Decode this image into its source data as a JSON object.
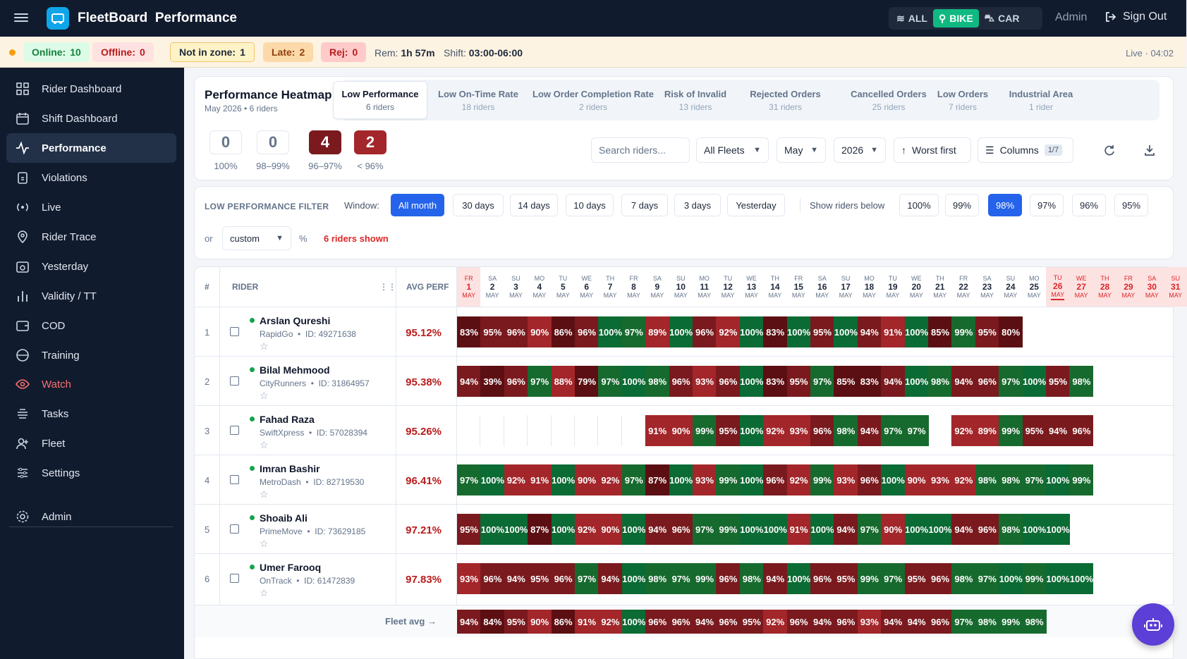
{
  "app": {
    "brand": "FleetBoard",
    "page": "Performance"
  },
  "vehicle_filter": [
    {
      "label": "ALL",
      "active": false
    },
    {
      "label": "BIKE",
      "active": true
    },
    {
      "label": "CAR",
      "active": false
    }
  ],
  "header": {
    "admin": "Admin",
    "signout": "Sign Out"
  },
  "status": {
    "online_label": "Online:",
    "online": "10",
    "offline_label": "Offline:",
    "offline": "0",
    "notinzone_label": "Not in zone:",
    "notinzone": "1",
    "late_label": "Late:",
    "late": "2",
    "rej_label": "Rej:",
    "rej": "0",
    "rem_label": "Rem:",
    "rem": "1h 57m",
    "shift_label": "Shift:",
    "shift": "03:00-06:00",
    "live": "Live · 04:02"
  },
  "sidebar": {
    "items": [
      {
        "label": "Rider Dashboard",
        "icon": "grid-icon"
      },
      {
        "label": "Shift Dashboard",
        "icon": "calendar-icon"
      },
      {
        "label": "Performance",
        "icon": "activity-icon"
      },
      {
        "label": "Violations",
        "icon": "clipboard-icon"
      },
      {
        "label": "Live",
        "icon": "radio-icon"
      },
      {
        "label": "Rider Trace",
        "icon": "map-pin-icon"
      },
      {
        "label": "Yesterday",
        "icon": "calendar-clock-icon"
      },
      {
        "label": "Validity / TT",
        "icon": "bar-chart-icon"
      },
      {
        "label": "COD",
        "icon": "wallet-icon"
      },
      {
        "label": "Training",
        "icon": "gauge-icon"
      },
      {
        "label": "Watch",
        "icon": "eye-icon"
      },
      {
        "label": "Tasks",
        "icon": "stack-icon"
      },
      {
        "label": "Fleet",
        "icon": "user-plus-icon"
      },
      {
        "label": "Settings",
        "icon": "sliders-icon"
      },
      {
        "label": "Admin",
        "icon": "gear-icon"
      }
    ]
  },
  "heatmap": {
    "title": "Performance Heatmap",
    "subtitle": "May 2026 • 6 riders",
    "tabs": [
      {
        "label": "Low Performance",
        "sub": "6 riders"
      },
      {
        "label": "Low On-Time Rate",
        "sub": "18 riders"
      },
      {
        "label": "Low Order Completion Rate",
        "sub": "2 riders"
      },
      {
        "label": "Risk of Invalid",
        "sub": "13 riders"
      },
      {
        "label": "Rejected Orders",
        "sub": "31 riders"
      },
      {
        "label": "Cancelled Orders",
        "sub": "25 riders"
      },
      {
        "label": "Low Orders",
        "sub": "7 riders"
      },
      {
        "label": "Industrial Area",
        "sub": "1 rider"
      }
    ],
    "summary": [
      {
        "value": "0",
        "label": "100%"
      },
      {
        "value": "0",
        "label": "98–99%"
      },
      {
        "value": "4",
        "label": "96–97%"
      },
      {
        "value": "2",
        "label": "< 96%"
      }
    ],
    "search_placeholder": "Search riders...",
    "fleet_select": "All Fleets",
    "month_select": "May",
    "year_select": "2026",
    "sort_label": "Worst first",
    "columns_label": "Columns",
    "columns_count": "1/7"
  },
  "filter": {
    "label": "LOW PERFORMANCE FILTER",
    "window_label": "Window:",
    "windows": [
      "All month",
      "30 days",
      "14 days",
      "10 days",
      "7 days",
      "3 days",
      "Yesterday"
    ],
    "active_window": "All month",
    "show_label": "Show riders below",
    "thresholds": [
      "100%",
      "99%",
      "98%",
      "97%",
      "96%",
      "95%"
    ],
    "active_threshold": "98%",
    "or_label": "or",
    "custom": "custom",
    "pct": "%",
    "shown": "6 riders shown"
  },
  "table": {
    "col_num": "#",
    "col_rider": "RIDER",
    "col_avg": "AVG PERF",
    "month": "MAY",
    "days": [
      {
        "w": "FR",
        "d": "1"
      },
      {
        "w": "SA",
        "d": "2"
      },
      {
        "w": "SU",
        "d": "3"
      },
      {
        "w": "MO",
        "d": "4"
      },
      {
        "w": "TU",
        "d": "5"
      },
      {
        "w": "WE",
        "d": "6"
      },
      {
        "w": "TH",
        "d": "7"
      },
      {
        "w": "FR",
        "d": "8"
      },
      {
        "w": "SA",
        "d": "9"
      },
      {
        "w": "SU",
        "d": "10"
      },
      {
        "w": "MO",
        "d": "11"
      },
      {
        "w": "TU",
        "d": "12"
      },
      {
        "w": "WE",
        "d": "13"
      },
      {
        "w": "TH",
        "d": "14"
      },
      {
        "w": "FR",
        "d": "15"
      },
      {
        "w": "SA",
        "d": "16"
      },
      {
        "w": "SU",
        "d": "17"
      },
      {
        "w": "MO",
        "d": "18"
      },
      {
        "w": "TU",
        "d": "19"
      },
      {
        "w": "WE",
        "d": "20"
      },
      {
        "w": "TH",
        "d": "21"
      },
      {
        "w": "FR",
        "d": "22"
      },
      {
        "w": "SA",
        "d": "23"
      },
      {
        "w": "SU",
        "d": "24"
      },
      {
        "w": "MO",
        "d": "25"
      },
      {
        "w": "TU",
        "d": "26"
      },
      {
        "w": "WE",
        "d": "27"
      },
      {
        "w": "TH",
        "d": "28"
      },
      {
        "w": "FR",
        "d": "29"
      },
      {
        "w": "SA",
        "d": "30"
      },
      {
        "w": "SU",
        "d": "31"
      }
    ],
    "highlight_days": [
      "1",
      "26",
      "27",
      "28",
      "29",
      "30",
      "31"
    ],
    "today": "26",
    "rows": [
      {
        "n": "1",
        "name": "Arslan Qureshi",
        "fleet": "RapidGo",
        "id": "ID: 49271638",
        "avg": "95.12%",
        "vals": [
          83,
          95,
          96,
          90,
          86,
          96,
          100,
          97,
          89,
          100,
          96,
          92,
          100,
          83,
          100,
          95,
          100,
          94,
          91,
          100,
          85,
          99,
          95,
          80,
          null,
          null,
          null,
          null,
          null,
          null,
          null
        ]
      },
      {
        "n": "2",
        "name": "Bilal Mehmood",
        "fleet": "CityRunners",
        "id": "ID: 31864957",
        "avg": "95.38%",
        "vals": [
          94,
          39,
          96,
          97,
          88,
          79,
          97,
          100,
          98,
          96,
          93,
          96,
          100,
          83,
          95,
          97,
          85,
          83,
          94,
          100,
          98,
          94,
          96,
          97,
          100,
          95,
          98,
          null,
          null,
          null,
          null
        ]
      },
      {
        "n": "3",
        "name": "Fahad Raza",
        "fleet": "SwiftXpress",
        "id": "ID: 57028394",
        "avg": "95.26%",
        "vals": [
          null,
          null,
          null,
          null,
          null,
          null,
          null,
          null,
          91,
          90,
          99,
          95,
          100,
          92,
          93,
          96,
          98,
          94,
          97,
          97,
          null,
          92,
          89,
          99,
          95,
          94,
          96,
          null,
          null,
          null,
          null
        ]
      },
      {
        "n": "4",
        "name": "Imran Bashir",
        "fleet": "MetroDash",
        "id": "ID: 82719530",
        "avg": "96.41%",
        "vals": [
          97,
          100,
          92,
          91,
          100,
          90,
          92,
          97,
          87,
          100,
          93,
          99,
          100,
          96,
          92,
          99,
          93,
          96,
          100,
          90,
          93,
          92,
          98,
          98,
          97,
          100,
          99,
          null,
          null,
          null,
          null
        ]
      },
      {
        "n": "5",
        "name": "Shoaib Ali",
        "fleet": "PrimeMove",
        "id": "ID: 73629185",
        "avg": "97.21%",
        "vals": [
          95,
          100,
          100,
          87,
          100,
          92,
          90,
          100,
          94,
          96,
          97,
          99,
          100,
          100,
          91,
          100,
          94,
          97,
          90,
          100,
          100,
          94,
          96,
          98,
          100,
          100,
          null,
          null,
          null,
          null,
          null
        ]
      },
      {
        "n": "6",
        "name": "Umer Farooq",
        "fleet": "OnTrack",
        "id": "ID: 61472839",
        "avg": "97.83%",
        "vals": [
          93,
          96,
          94,
          95,
          96,
          97,
          94,
          100,
          98,
          97,
          99,
          96,
          98,
          94,
          100,
          96,
          95,
          99,
          97,
          95,
          96,
          98,
          97,
          100,
          99,
          100,
          100,
          null,
          null,
          null,
          null
        ]
      }
    ],
    "fleet_avg_label": "Fleet avg →",
    "fleet_avg": [
      94,
      84,
      95,
      90,
      86,
      91,
      92,
      100,
      96,
      96,
      94,
      96,
      95,
      92,
      96,
      94,
      96,
      93,
      94,
      94,
      96,
      97,
      98,
      99,
      98,
      null,
      null,
      null,
      null,
      null,
      null
    ]
  },
  "colors": {
    "excellent": "#0b6b34",
    "good": "#176a2e",
    "mid": "#7a1a1e",
    "low": "#a3262a",
    "bad": "#5c0f13"
  }
}
